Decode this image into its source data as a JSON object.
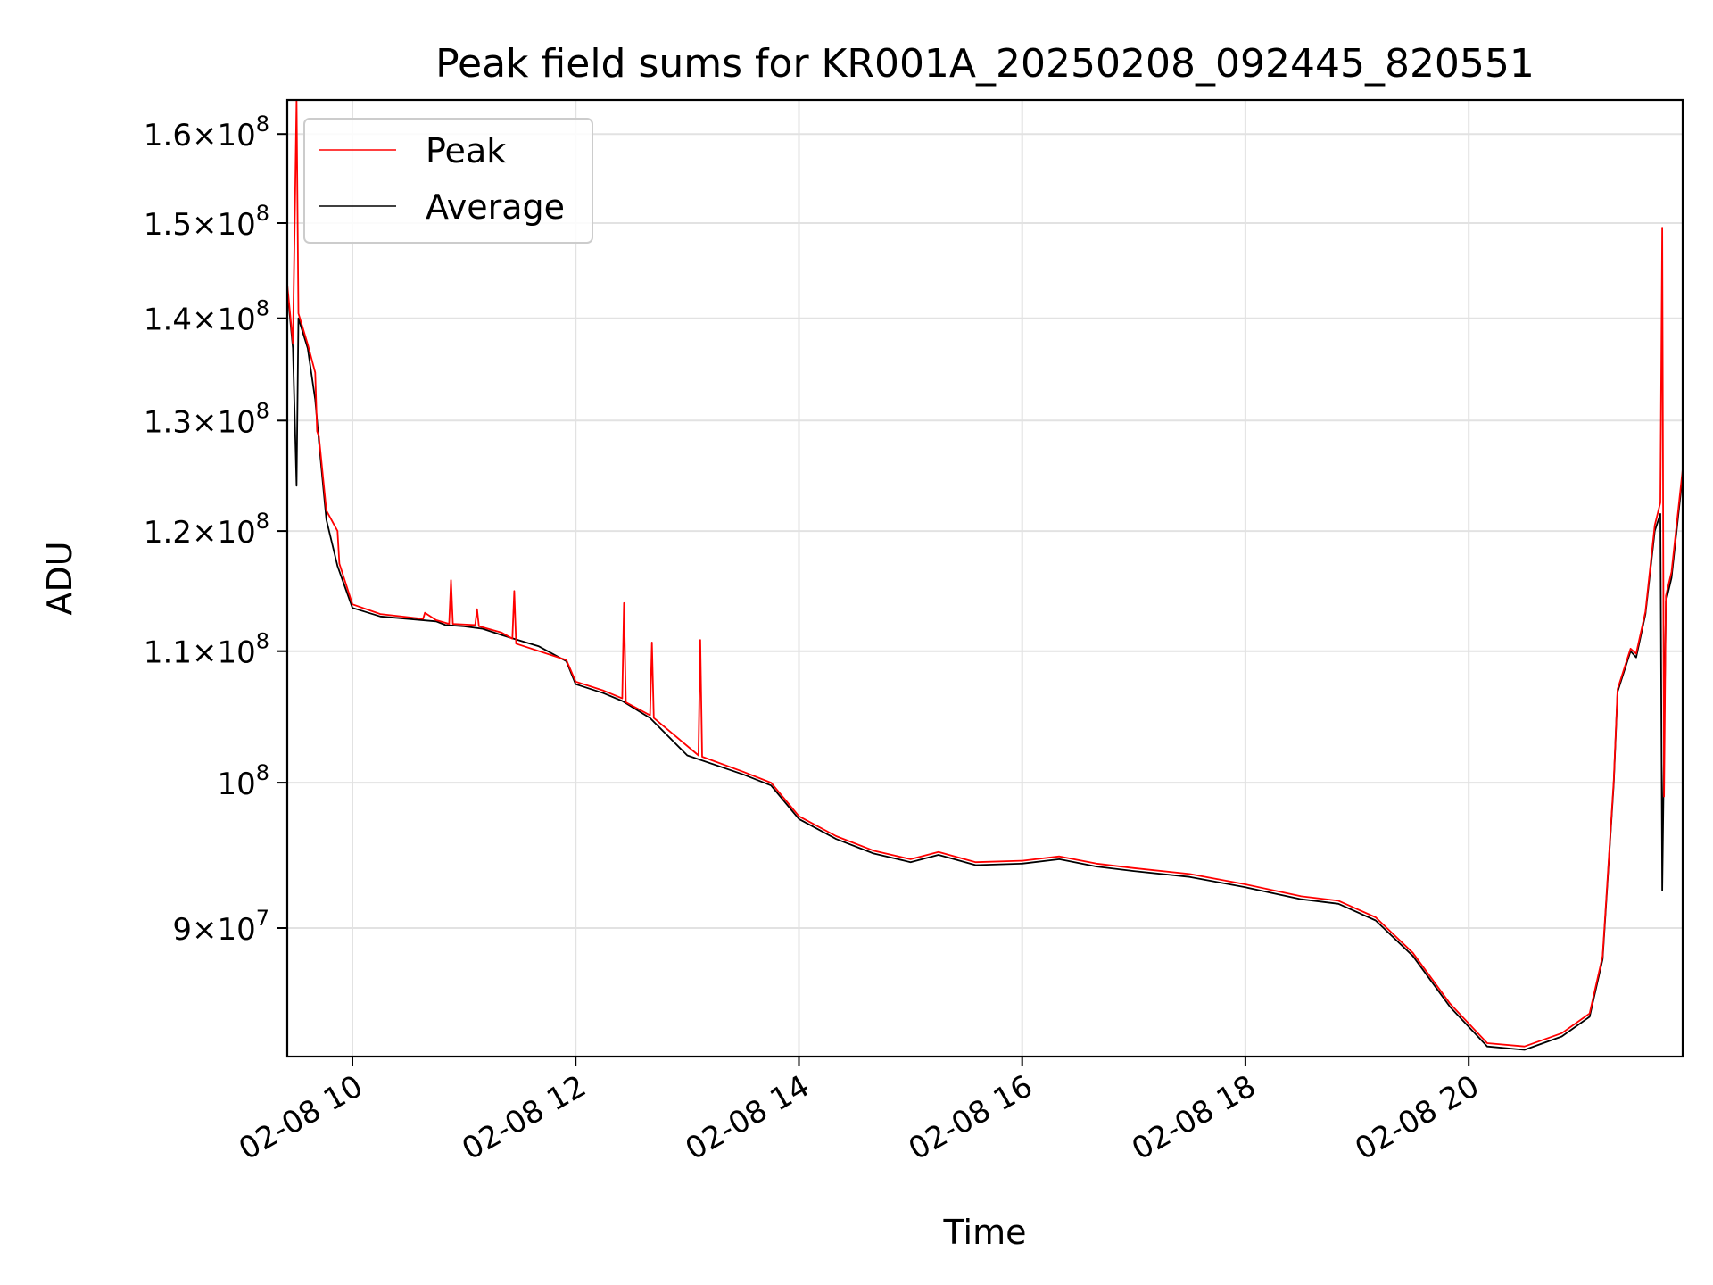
{
  "chart_data": {
    "type": "line",
    "title": "Peak field sums for KR001A_20250208_092445_820551",
    "xlabel": "Time",
    "ylabel": "ADU",
    "yscale": "log",
    "xlim": [
      "2025-02-08 09:25",
      "2025-02-08 21:55"
    ],
    "ylim": [
      82000000,
      164000000
    ],
    "grid": true,
    "legend_position": "top-left",
    "x_ticks": [
      {
        "time": "2025-02-08 10:00",
        "label": "02-08 10"
      },
      {
        "time": "2025-02-08 12:00",
        "label": "02-08 12"
      },
      {
        "time": "2025-02-08 14:00",
        "label": "02-08 14"
      },
      {
        "time": "2025-02-08 16:00",
        "label": "02-08 16"
      },
      {
        "time": "2025-02-08 18:00",
        "label": "02-08 18"
      },
      {
        "time": "2025-02-08 20:00",
        "label": "02-08 20"
      }
    ],
    "y_ticks": [
      {
        "value": 90000000,
        "mant": "9",
        "exp": "7"
      },
      {
        "value": 100000000,
        "mant": "",
        "exp": "8"
      },
      {
        "value": 110000000,
        "mant": "1.1",
        "exp": "8"
      },
      {
        "value": 120000000,
        "mant": "1.2",
        "exp": "8"
      },
      {
        "value": 130000000,
        "mant": "1.3",
        "exp": "8"
      },
      {
        "value": 140000000,
        "mant": "1.4",
        "exp": "8"
      },
      {
        "value": 150000000,
        "mant": "1.5",
        "exp": "8"
      },
      {
        "value": 160000000,
        "mant": "1.6",
        "exp": "8"
      }
    ],
    "series": [
      {
        "name": "Average",
        "color": "#000000",
        "points": [
          [
            "2025-02-08 09:25",
            143000000
          ],
          [
            "2025-02-08 09:28",
            137000000
          ],
          [
            "2025-02-08 09:30",
            124000000
          ],
          [
            "2025-02-08 09:31",
            140000000
          ],
          [
            "2025-02-08 09:36",
            137000000
          ],
          [
            "2025-02-08 09:40",
            132000000
          ],
          [
            "2025-02-08 09:42",
            128000000
          ],
          [
            "2025-02-08 09:46",
            121000000
          ],
          [
            "2025-02-08 09:52",
            117000000
          ],
          [
            "2025-02-08 10:00",
            113500000
          ],
          [
            "2025-02-08 10:15",
            112800000
          ],
          [
            "2025-02-08 10:45",
            112400000
          ],
          [
            "2025-02-08 10:50",
            112100000
          ],
          [
            "2025-02-08 11:00",
            112000000
          ],
          [
            "2025-02-08 11:10",
            111800000
          ],
          [
            "2025-02-08 11:20",
            111300000
          ],
          [
            "2025-02-08 11:40",
            110400000
          ],
          [
            "2025-02-08 11:55",
            109200000
          ],
          [
            "2025-02-08 12:00",
            107400000
          ],
          [
            "2025-02-08 12:15",
            106700000
          ],
          [
            "2025-02-08 12:25",
            106100000
          ],
          [
            "2025-02-08 12:40",
            104800000
          ],
          [
            "2025-02-08 13:00",
            102000000
          ],
          [
            "2025-02-08 13:30",
            100600000
          ],
          [
            "2025-02-08 13:45",
            99800000
          ],
          [
            "2025-02-08 14:00",
            97400000
          ],
          [
            "2025-02-08 14:20",
            96000000
          ],
          [
            "2025-02-08 14:40",
            95000000
          ],
          [
            "2025-02-08 15:00",
            94400000
          ],
          [
            "2025-02-08 15:15",
            94900000
          ],
          [
            "2025-02-08 15:35",
            94200000
          ],
          [
            "2025-02-08 16:00",
            94300000
          ],
          [
            "2025-02-08 16:20",
            94600000
          ],
          [
            "2025-02-08 16:40",
            94100000
          ],
          [
            "2025-02-08 17:00",
            93800000
          ],
          [
            "2025-02-08 17:30",
            93400000
          ],
          [
            "2025-02-08 18:00",
            92700000
          ],
          [
            "2025-02-08 18:30",
            91900000
          ],
          [
            "2025-02-08 18:50",
            91600000
          ],
          [
            "2025-02-08 19:10",
            90500000
          ],
          [
            "2025-02-08 19:30",
            88200000
          ],
          [
            "2025-02-08 19:50",
            85000000
          ],
          [
            "2025-02-08 20:10",
            82600000
          ],
          [
            "2025-02-08 20:30",
            82400000
          ],
          [
            "2025-02-08 20:50",
            83200000
          ],
          [
            "2025-02-08 21:05",
            84400000
          ],
          [
            "2025-02-08 21:12",
            88000000
          ],
          [
            "2025-02-08 21:18",
            100000000
          ],
          [
            "2025-02-08 21:20",
            106800000
          ],
          [
            "2025-02-08 21:27",
            110000000
          ],
          [
            "2025-02-08 21:30",
            109500000
          ],
          [
            "2025-02-08 21:35",
            113000000
          ],
          [
            "2025-02-08 21:40",
            120000000
          ],
          [
            "2025-02-08 21:43",
            121500000
          ],
          [
            "2025-02-08 21:44",
            92500000
          ],
          [
            "2025-02-08 21:46",
            114000000
          ],
          [
            "2025-02-08 21:49",
            116000000
          ],
          [
            "2025-02-08 21:55",
            125000000
          ]
        ]
      },
      {
        "name": "Peak",
        "color": "#ff0000",
        "points": [
          [
            "2025-02-08 09:25",
            143500000
          ],
          [
            "2025-02-08 09:28",
            137500000
          ],
          [
            "2025-02-08 09:30",
            164000000
          ],
          [
            "2025-02-08 09:31",
            140500000
          ],
          [
            "2025-02-08 09:36",
            137400000
          ],
          [
            "2025-02-08 09:40",
            134600000
          ],
          [
            "2025-02-08 09:41",
            129000000
          ],
          [
            "2025-02-08 09:42",
            128500000
          ],
          [
            "2025-02-08 09:46",
            121800000
          ],
          [
            "2025-02-08 09:52",
            120000000
          ],
          [
            "2025-02-08 09:53",
            117200000
          ],
          [
            "2025-02-08 10:00",
            113800000
          ],
          [
            "2025-02-08 10:15",
            113000000
          ],
          [
            "2025-02-08 10:38",
            112600000
          ],
          [
            "2025-02-08 10:39",
            113100000
          ],
          [
            "2025-02-08 10:45",
            112500000
          ],
          [
            "2025-02-08 10:52",
            112200000
          ],
          [
            "2025-02-08 10:53",
            115800000
          ],
          [
            "2025-02-08 10:54",
            112200000
          ],
          [
            "2025-02-08 11:06",
            112100000
          ],
          [
            "2025-02-08 11:07",
            113400000
          ],
          [
            "2025-02-08 11:08",
            112000000
          ],
          [
            "2025-02-08 11:20",
            111500000
          ],
          [
            "2025-02-08 11:26",
            111000000
          ],
          [
            "2025-02-08 11:27",
            114900000
          ],
          [
            "2025-02-08 11:28",
            110600000
          ],
          [
            "2025-02-08 11:55",
            109300000
          ],
          [
            "2025-02-08 12:00",
            107600000
          ],
          [
            "2025-02-08 12:15",
            106900000
          ],
          [
            "2025-02-08 12:25",
            106300000
          ],
          [
            "2025-02-08 12:26",
            113900000
          ],
          [
            "2025-02-08 12:27",
            106000000
          ],
          [
            "2025-02-08 12:40",
            105000000
          ],
          [
            "2025-02-08 12:41",
            110700000
          ],
          [
            "2025-02-08 12:42",
            104800000
          ],
          [
            "2025-02-08 13:06",
            102000000
          ],
          [
            "2025-02-08 13:07",
            110900000
          ],
          [
            "2025-02-08 13:08",
            101900000
          ],
          [
            "2025-02-08 13:30",
            100800000
          ],
          [
            "2025-02-08 13:45",
            100000000
          ],
          [
            "2025-02-08 14:00",
            97600000
          ],
          [
            "2025-02-08 14:20",
            96200000
          ],
          [
            "2025-02-08 14:40",
            95200000
          ],
          [
            "2025-02-08 15:00",
            94600000
          ],
          [
            "2025-02-08 15:15",
            95100000
          ],
          [
            "2025-02-08 15:35",
            94400000
          ],
          [
            "2025-02-08 16:00",
            94500000
          ],
          [
            "2025-02-08 16:20",
            94800000
          ],
          [
            "2025-02-08 16:40",
            94300000
          ],
          [
            "2025-02-08 17:00",
            94000000
          ],
          [
            "2025-02-08 17:30",
            93600000
          ],
          [
            "2025-02-08 18:00",
            92900000
          ],
          [
            "2025-02-08 18:30",
            92100000
          ],
          [
            "2025-02-08 18:50",
            91800000
          ],
          [
            "2025-02-08 19:10",
            90700000
          ],
          [
            "2025-02-08 19:30",
            88400000
          ],
          [
            "2025-02-08 19:50",
            85200000
          ],
          [
            "2025-02-08 20:10",
            82800000
          ],
          [
            "2025-02-08 20:30",
            82600000
          ],
          [
            "2025-02-08 20:50",
            83400000
          ],
          [
            "2025-02-08 21:05",
            84600000
          ],
          [
            "2025-02-08 21:12",
            88200000
          ],
          [
            "2025-02-08 21:18",
            100200000
          ],
          [
            "2025-02-08 21:20",
            107000000
          ],
          [
            "2025-02-08 21:27",
            110200000
          ],
          [
            "2025-02-08 21:30",
            109800000
          ],
          [
            "2025-02-08 21:35",
            113200000
          ],
          [
            "2025-02-08 21:40",
            120500000
          ],
          [
            "2025-02-08 21:43",
            122500000
          ],
          [
            "2025-02-08 21:44",
            149500000
          ],
          [
            "2025-02-08 21:45",
            99000000
          ],
          [
            "2025-02-08 21:46",
            114500000
          ],
          [
            "2025-02-08 21:49",
            116500000
          ],
          [
            "2025-02-08 21:55",
            125500000
          ]
        ]
      }
    ]
  }
}
